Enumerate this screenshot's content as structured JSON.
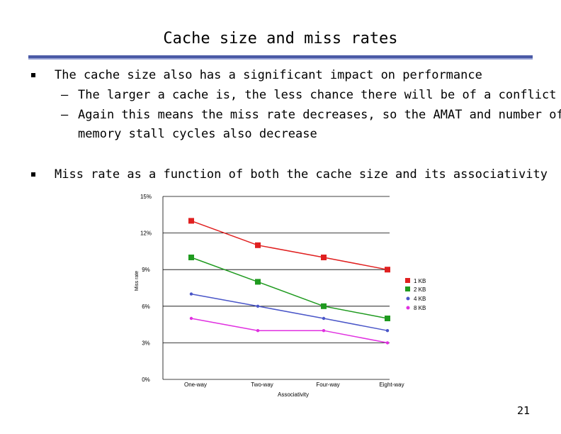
{
  "slide": {
    "title": "Cache size and miss rates",
    "bullet1": "The cache size also has a significant impact on performance",
    "sub1": "The larger a cache is, the less chance there will be of a conflict",
    "sub2a": "Again this means the miss rate decreases, so the AMAT and number of",
    "sub2b": "memory stall cycles also decrease",
    "bullet2": "Miss rate as a function of both the cache size and its associativity",
    "page_number": "21",
    "accent_color": "#4a5aa6"
  },
  "chart_data": {
    "type": "line",
    "categories": [
      "One-way",
      "Two-way",
      "Four-way",
      "Eight-way"
    ],
    "xlabel": "Associativity",
    "ylabel": "Miss rate",
    "ylim": [
      0,
      15
    ],
    "yticks": [
      "0%",
      "3%",
      "6%",
      "9%",
      "12%",
      "15%"
    ],
    "grid": true,
    "legend_position": "right",
    "series": [
      {
        "name": "1 KB",
        "values": [
          13,
          11,
          10,
          9
        ],
        "color": "#e02020",
        "marker": "square"
      },
      {
        "name": "2 KB",
        "values": [
          10,
          8,
          6,
          5
        ],
        "color": "#1f9a1f",
        "marker": "square"
      },
      {
        "name": "4 KB",
        "values": [
          7,
          6,
          5,
          4
        ],
        "color": "#4a56c8",
        "marker": "circle"
      },
      {
        "name": "8 KB",
        "values": [
          5,
          4,
          4,
          3
        ],
        "color": "#e030e0",
        "marker": "circle"
      }
    ]
  }
}
